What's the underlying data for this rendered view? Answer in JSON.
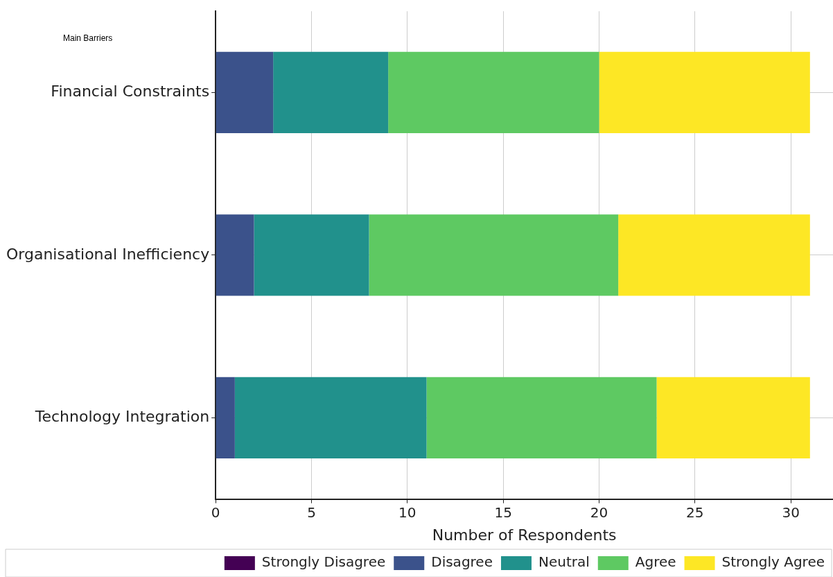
{
  "chart_data": {
    "type": "bar",
    "orientation": "horizontal",
    "stacked": true,
    "ylabel": "Main Barriers",
    "xlabel": "Number of Respondents",
    "categories": [
      "Financial Constraints",
      "Organisational Inefficiency",
      "Technology Integration"
    ],
    "series": [
      {
        "name": "Strongly Disagree",
        "color": "#440154",
        "values": [
          0,
          0,
          0
        ]
      },
      {
        "name": "Disagree",
        "color": "#3b528b",
        "values": [
          3,
          2,
          1
        ]
      },
      {
        "name": "Neutral",
        "color": "#21918c",
        "values": [
          6,
          6,
          10
        ]
      },
      {
        "name": "Agree",
        "color": "#5ec962",
        "values": [
          11,
          13,
          12
        ]
      },
      {
        "name": "Strongly Agree",
        "color": "#fde725",
        "values": [
          11,
          10,
          8
        ]
      }
    ],
    "xlim": [
      0,
      32.2
    ],
    "xticks": [
      0,
      5,
      10,
      15,
      20,
      25,
      30
    ],
    "grid": true,
    "legend": "bottom"
  }
}
